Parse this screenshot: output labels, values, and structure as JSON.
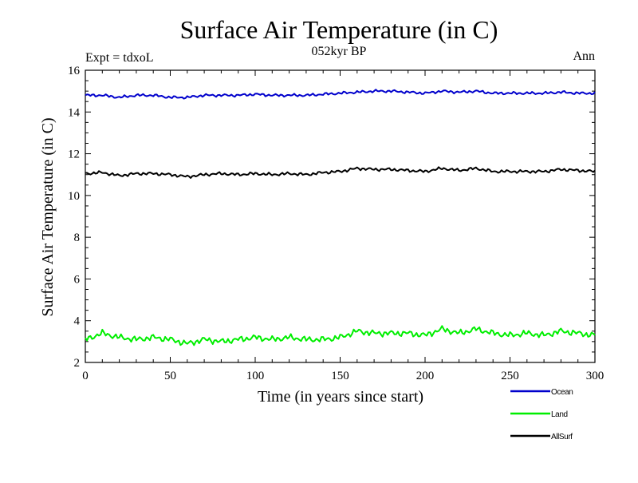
{
  "chart_data": {
    "type": "line",
    "title": "Surface Air Temperature (in C)",
    "subtitle": "052kyr BP",
    "left_label": "Expt = tdxoL",
    "right_label": "Ann",
    "xlabel": "Time (in years since start)",
    "ylabel": "Surface Air Temperature (in C)",
    "xlim": [
      0,
      300
    ],
    "ylim": [
      2,
      16
    ],
    "xticks": [
      0,
      50,
      100,
      150,
      200,
      250,
      300
    ],
    "yticks": [
      2,
      4,
      6,
      8,
      10,
      12,
      14,
      16
    ],
    "grid": false,
    "legend_position": "bottom-right, below plot",
    "x": [
      0,
      10,
      20,
      30,
      40,
      50,
      60,
      70,
      80,
      90,
      100,
      110,
      120,
      130,
      140,
      150,
      160,
      170,
      180,
      190,
      200,
      210,
      220,
      230,
      240,
      250,
      260,
      270,
      280,
      290,
      300
    ],
    "series": [
      {
        "name": "Ocean",
        "color": "#0000cc",
        "values": [
          14.8,
          14.8,
          14.7,
          14.8,
          14.8,
          14.7,
          14.7,
          14.8,
          14.8,
          14.8,
          14.85,
          14.8,
          14.8,
          14.8,
          14.85,
          14.9,
          14.95,
          15.0,
          15.0,
          14.95,
          14.9,
          15.0,
          14.95,
          15.0,
          14.9,
          14.9,
          14.9,
          14.9,
          14.95,
          14.9,
          14.9
        ]
      },
      {
        "name": "Land",
        "color": "#00ee00",
        "values": [
          3.1,
          3.4,
          3.2,
          3.1,
          3.2,
          3.1,
          2.9,
          3.1,
          3.0,
          3.1,
          3.2,
          3.1,
          3.2,
          3.1,
          3.1,
          3.2,
          3.5,
          3.4,
          3.4,
          3.4,
          3.3,
          3.6,
          3.4,
          3.6,
          3.4,
          3.3,
          3.4,
          3.3,
          3.5,
          3.4,
          3.3
        ]
      },
      {
        "name": "AllSurf",
        "color": "#000000",
        "values": [
          11.05,
          11.1,
          10.95,
          11.05,
          11.05,
          11.0,
          10.9,
          11.0,
          11.05,
          11.0,
          11.05,
          11.0,
          11.05,
          11.0,
          11.1,
          11.15,
          11.3,
          11.25,
          11.25,
          11.2,
          11.15,
          11.3,
          11.2,
          11.3,
          11.15,
          11.15,
          11.15,
          11.15,
          11.25,
          11.2,
          11.15
        ]
      }
    ]
  }
}
